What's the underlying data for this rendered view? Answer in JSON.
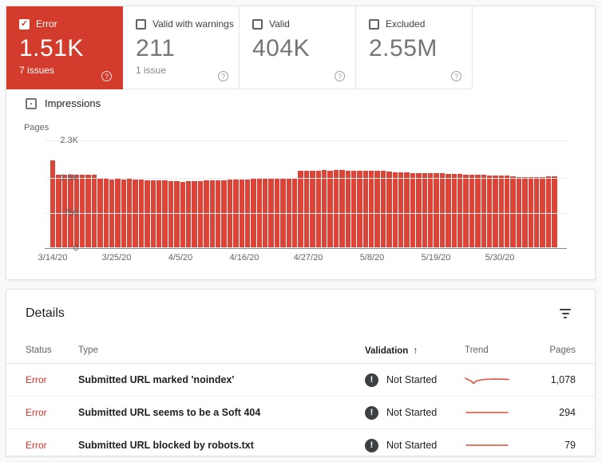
{
  "summary_cards": [
    {
      "label": "Error",
      "value": "1.51K",
      "sub": "7 issues",
      "checked": true,
      "selected": true
    },
    {
      "label": "Valid with warnings",
      "value": "211",
      "sub": "1 issue",
      "checked": false,
      "selected": false
    },
    {
      "label": "Valid",
      "value": "404K",
      "sub": "",
      "checked": false,
      "selected": false
    },
    {
      "label": "Excluded",
      "value": "2.55M",
      "sub": "",
      "checked": false,
      "selected": false
    }
  ],
  "help_icon": "?",
  "impressions_toggle": {
    "label": "Impressions",
    "checked": false
  },
  "chart_data": {
    "type": "bar",
    "title": "",
    "xlabel": "",
    "ylabel": "Pages",
    "ylim": [
      0,
      2300
    ],
    "grid": true,
    "y_ticks": [
      {
        "label": "2.3K",
        "value": 2300
      },
      {
        "label": "1.5K",
        "value": 1500
      },
      {
        "label": "750",
        "value": 750
      },
      {
        "label": "0",
        "value": 0
      }
    ],
    "x_ticks": [
      "3/14/20",
      "3/25/20",
      "4/5/20",
      "4/16/20",
      "4/27/20",
      "5/8/20",
      "5/19/20",
      "5/30/20"
    ],
    "bar_color": "#db4437",
    "values": [
      1870,
      1560,
      1555,
      1560,
      1565,
      1560,
      1565,
      1560,
      1475,
      1470,
      1465,
      1470,
      1465,
      1470,
      1460,
      1455,
      1450,
      1445,
      1440,
      1435,
      1425,
      1420,
      1415,
      1420,
      1425,
      1430,
      1435,
      1440,
      1445,
      1450,
      1455,
      1460,
      1460,
      1465,
      1470,
      1475,
      1480,
      1485,
      1485,
      1490,
      1495,
      1500,
      1645,
      1650,
      1655,
      1650,
      1660,
      1655,
      1665,
      1660,
      1655,
      1650,
      1645,
      1640,
      1650,
      1645,
      1640,
      1635,
      1620,
      1615,
      1610,
      1605,
      1600,
      1600,
      1595,
      1590,
      1590,
      1585,
      1580,
      1580,
      1570,
      1565,
      1560,
      1555,
      1550,
      1545,
      1540,
      1540,
      1520,
      1515,
      1515,
      1510,
      1510,
      1515,
      1525,
      1520
    ]
  },
  "details": {
    "title": "Details",
    "columns": [
      "Status",
      "Type",
      "Validation",
      "Trend",
      "Pages"
    ],
    "sort_column": "Validation",
    "sort_arrow": "↑",
    "rows": [
      {
        "status": "Error",
        "type": "Submitted URL marked 'noindex'",
        "validation": "Not Started",
        "trend": "wavy",
        "pages": "1,078"
      },
      {
        "status": "Error",
        "type": "Submitted URL seems to be a Soft 404",
        "validation": "Not Started",
        "trend": "flat",
        "pages": "294"
      },
      {
        "status": "Error",
        "type": "Submitted URL blocked by robots.txt",
        "validation": "Not Started",
        "trend": "flat",
        "pages": "79"
      }
    ]
  },
  "colors": {
    "error_red": "#d33b2c",
    "bar_red": "#db4437",
    "status_red": "#d93025",
    "sparkline_red": "#dd4b39",
    "page_bg": "#f8f9fa"
  }
}
